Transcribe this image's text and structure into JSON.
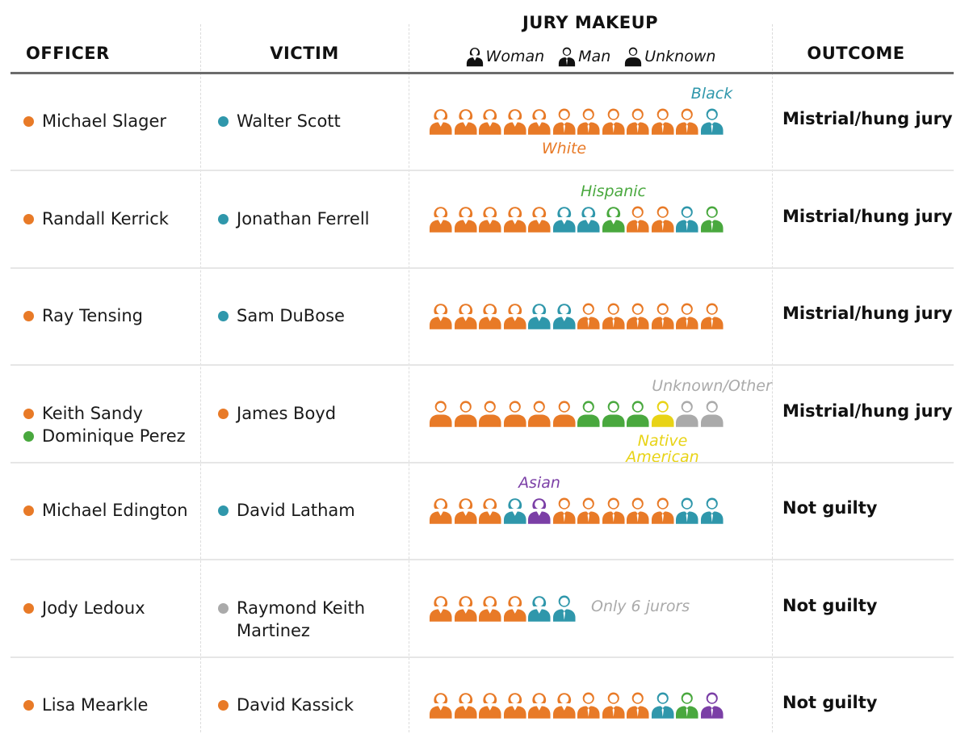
{
  "header": {
    "officer": "OFFICER",
    "victim": "VICTIM",
    "jury_makeup": "JURY MAKEUP",
    "outcome": "OUTCOME",
    "legend": [
      {
        "label": "Woman",
        "icon": "woman-icon"
      },
      {
        "label": "Man",
        "icon": "man-icon"
      },
      {
        "label": "Unknown",
        "icon": "unknown-person-icon"
      }
    ]
  },
  "colors": {
    "White": "#E87A27",
    "Black": "#2F97AB",
    "Hispanic": "#49A83E",
    "Native American": "#E8D316",
    "Asian": "#7B3FA6",
    "Unknown/Other": "#AAAAAA",
    "victim_unknown": "#AAAAAA"
  },
  "chart_data": {
    "type": "table",
    "columns": [
      "OFFICER",
      "VICTIM",
      "JURY MAKEUP",
      "OUTCOME"
    ],
    "legend": [
      "Woman",
      "Man",
      "Unknown"
    ],
    "rows": [
      {
        "officers": [
          {
            "name": "Michael Slager",
            "race": "White"
          }
        ],
        "victims": [
          {
            "name": "Walter Scott",
            "race": "Black"
          }
        ],
        "jury": [
          {
            "race": "White",
            "gender": "Woman"
          },
          {
            "race": "White",
            "gender": "Woman"
          },
          {
            "race": "White",
            "gender": "Woman"
          },
          {
            "race": "White",
            "gender": "Woman"
          },
          {
            "race": "White",
            "gender": "Woman"
          },
          {
            "race": "White",
            "gender": "Man"
          },
          {
            "race": "White",
            "gender": "Man"
          },
          {
            "race": "White",
            "gender": "Man"
          },
          {
            "race": "White",
            "gender": "Man"
          },
          {
            "race": "White",
            "gender": "Man"
          },
          {
            "race": "White",
            "gender": "Man"
          },
          {
            "race": "Black",
            "gender": "Man"
          }
        ],
        "annotations": [
          {
            "text": "Black",
            "race": "Black",
            "pos": "above",
            "juror": 11
          },
          {
            "text": "White",
            "race": "White",
            "pos": "below",
            "juror": 5
          }
        ],
        "outcome": "Mistrial/hung jury"
      },
      {
        "officers": [
          {
            "name": "Randall Kerrick",
            "race": "White"
          }
        ],
        "victims": [
          {
            "name": "Jonathan Ferrell",
            "race": "Black"
          }
        ],
        "jury": [
          {
            "race": "White",
            "gender": "Woman"
          },
          {
            "race": "White",
            "gender": "Woman"
          },
          {
            "race": "White",
            "gender": "Woman"
          },
          {
            "race": "White",
            "gender": "Woman"
          },
          {
            "race": "White",
            "gender": "Woman"
          },
          {
            "race": "Black",
            "gender": "Woman"
          },
          {
            "race": "Black",
            "gender": "Woman"
          },
          {
            "race": "Hispanic",
            "gender": "Woman"
          },
          {
            "race": "White",
            "gender": "Man"
          },
          {
            "race": "White",
            "gender": "Man"
          },
          {
            "race": "Black",
            "gender": "Man"
          },
          {
            "race": "Hispanic",
            "gender": "Man"
          }
        ],
        "annotations": [
          {
            "text": "Hispanic",
            "race": "Hispanic",
            "pos": "above",
            "juror": 7
          }
        ],
        "outcome": "Mistrial/hung jury"
      },
      {
        "officers": [
          {
            "name": "Ray Tensing",
            "race": "White"
          }
        ],
        "victims": [
          {
            "name": "Sam DuBose",
            "race": "Black"
          }
        ],
        "jury": [
          {
            "race": "White",
            "gender": "Woman"
          },
          {
            "race": "White",
            "gender": "Woman"
          },
          {
            "race": "White",
            "gender": "Woman"
          },
          {
            "race": "White",
            "gender": "Woman"
          },
          {
            "race": "Black",
            "gender": "Woman"
          },
          {
            "race": "Black",
            "gender": "Woman"
          },
          {
            "race": "White",
            "gender": "Man"
          },
          {
            "race": "White",
            "gender": "Man"
          },
          {
            "race": "White",
            "gender": "Man"
          },
          {
            "race": "White",
            "gender": "Man"
          },
          {
            "race": "White",
            "gender": "Man"
          },
          {
            "race": "White",
            "gender": "Man"
          }
        ],
        "annotations": [],
        "outcome": "Mistrial/hung jury"
      },
      {
        "officers": [
          {
            "name": "Keith Sandy",
            "race": "White"
          },
          {
            "name": "Dominique Perez",
            "race": "Hispanic"
          }
        ],
        "victims": [
          {
            "name": "James Boyd",
            "race": "White"
          }
        ],
        "jury": [
          {
            "race": "White",
            "gender": "Unknown"
          },
          {
            "race": "White",
            "gender": "Unknown"
          },
          {
            "race": "White",
            "gender": "Unknown"
          },
          {
            "race": "White",
            "gender": "Unknown"
          },
          {
            "race": "White",
            "gender": "Unknown"
          },
          {
            "race": "White",
            "gender": "Unknown"
          },
          {
            "race": "Hispanic",
            "gender": "Unknown"
          },
          {
            "race": "Hispanic",
            "gender": "Unknown"
          },
          {
            "race": "Hispanic",
            "gender": "Unknown"
          },
          {
            "race": "Native American",
            "gender": "Unknown"
          },
          {
            "race": "Unknown/Other",
            "gender": "Unknown"
          },
          {
            "race": "Unknown/Other",
            "gender": "Unknown"
          }
        ],
        "annotations": [
          {
            "text": "Unknown/Other",
            "race": "Unknown/Other",
            "pos": "above",
            "juror": 11
          },
          {
            "text": "Native",
            "race": "Native American",
            "pos": "below",
            "juror": 9,
            "line": 0
          },
          {
            "text": "American",
            "race": "Native American",
            "pos": "below",
            "juror": 9,
            "line": 1
          }
        ],
        "outcome": "Mistrial/hung jury"
      },
      {
        "officers": [
          {
            "name": "Michael Edington",
            "race": "White"
          }
        ],
        "victims": [
          {
            "name": "David Latham",
            "race": "Black"
          }
        ],
        "jury": [
          {
            "race": "White",
            "gender": "Woman"
          },
          {
            "race": "White",
            "gender": "Woman"
          },
          {
            "race": "White",
            "gender": "Woman"
          },
          {
            "race": "Black",
            "gender": "Woman"
          },
          {
            "race": "Asian",
            "gender": "Woman"
          },
          {
            "race": "White",
            "gender": "Man"
          },
          {
            "race": "White",
            "gender": "Man"
          },
          {
            "race": "White",
            "gender": "Man"
          },
          {
            "race": "White",
            "gender": "Man"
          },
          {
            "race": "White",
            "gender": "Man"
          },
          {
            "race": "Black",
            "gender": "Man"
          },
          {
            "race": "Black",
            "gender": "Man"
          }
        ],
        "annotations": [
          {
            "text": "Asian",
            "race": "Asian",
            "pos": "above",
            "juror": 4
          }
        ],
        "outcome": "Not guilty"
      },
      {
        "officers": [
          {
            "name": "Jody Ledoux",
            "race": "White"
          }
        ],
        "victims": [
          {
            "name": "Raymond Keith Martinez",
            "lines": [
              "Raymond Keith",
              "Martinez"
            ],
            "race": "victim_unknown"
          }
        ],
        "jury": [
          {
            "race": "White",
            "gender": "Woman"
          },
          {
            "race": "White",
            "gender": "Woman"
          },
          {
            "race": "White",
            "gender": "Woman"
          },
          {
            "race": "White",
            "gender": "Woman"
          },
          {
            "race": "Black",
            "gender": "Woman"
          },
          {
            "race": "Black",
            "gender": "Man"
          }
        ],
        "annotations": [
          {
            "text": "Only 6 jurors",
            "race": "Unknown/Other",
            "pos": "right"
          }
        ],
        "outcome": "Not guilty"
      },
      {
        "officers": [
          {
            "name": "Lisa Mearkle",
            "race": "White"
          }
        ],
        "victims": [
          {
            "name": "David Kassick",
            "race": "White"
          }
        ],
        "jury": [
          {
            "race": "White",
            "gender": "Woman"
          },
          {
            "race": "White",
            "gender": "Woman"
          },
          {
            "race": "White",
            "gender": "Woman"
          },
          {
            "race": "White",
            "gender": "Woman"
          },
          {
            "race": "White",
            "gender": "Woman"
          },
          {
            "race": "White",
            "gender": "Woman"
          },
          {
            "race": "White",
            "gender": "Man"
          },
          {
            "race": "White",
            "gender": "Man"
          },
          {
            "race": "White",
            "gender": "Man"
          },
          {
            "race": "Black",
            "gender": "Man"
          },
          {
            "race": "Hispanic",
            "gender": "Man"
          },
          {
            "race": "Asian",
            "gender": "Man"
          }
        ],
        "annotations": [],
        "outcome": "Not guilty"
      }
    ]
  }
}
